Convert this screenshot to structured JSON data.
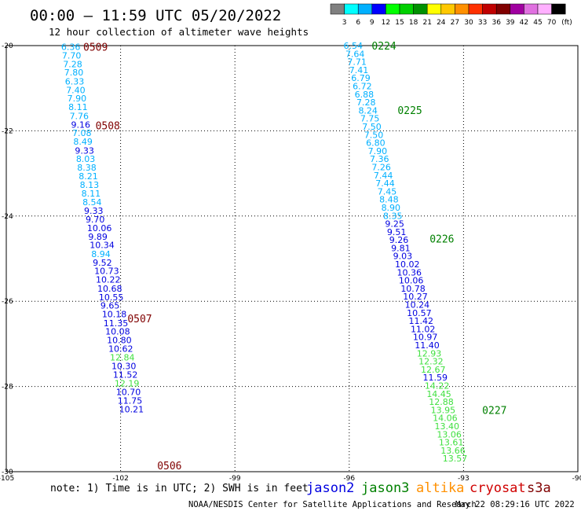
{
  "header": {
    "title": "00:00 – 11:59 UTC 05/20/2022",
    "subtitle": "12 hour collection of altimeter wave heights"
  },
  "color_scale": {
    "unit_label": "(ft)",
    "thresholds": [
      "3",
      "6",
      "9",
      "12",
      "15",
      "18",
      "21",
      "24",
      "27",
      "30",
      "33",
      "36",
      "39",
      "42",
      "45",
      "70"
    ],
    "colors": [
      "#808080",
      "#00ffff",
      "#00b0ff",
      "#0000ff",
      "#00ff00",
      "#00d000",
      "#009000",
      "#ffff00",
      "#ffc800",
      "#ff9000",
      "#ff3000",
      "#c00000",
      "#800000",
      "#a000a0",
      "#e070e0",
      "#ffb0ff",
      "#000000"
    ]
  },
  "footer": {
    "note": "note: 1) Time is in UTC; 2) SWH is in feet",
    "credit": "NOAA/NESDIS Center for Satellite Applications and Research",
    "timestamp": "May 22 08:29:16 UTC 2022",
    "legend": [
      {
        "name": "jason2",
        "color": "#0000e0"
      },
      {
        "name": "jason3",
        "color": "#008000"
      },
      {
        "name": "altika",
        "color": "#ff9000"
      },
      {
        "name": "cryosat",
        "color": "#d00000"
      },
      {
        "name": "s3a",
        "color": "#800000"
      }
    ]
  },
  "chart_data": {
    "type": "scatter",
    "xlim": [
      -105,
      -90
    ],
    "ylim": [
      -30,
      -20
    ],
    "x_ticks": [
      "-105",
      "-102",
      "-99",
      "-96",
      "-93",
      "-90"
    ],
    "y_ticks": [
      "-20",
      "-22",
      "-24",
      "-26",
      "-28",
      "-30"
    ],
    "grid": true,
    "series": [
      {
        "name": "s3a",
        "color": "#800000",
        "time_labels": [
          {
            "text": "0509",
            "x": -102.98,
            "y": -20.03
          },
          {
            "text": "0508",
            "x": -102.66,
            "y": -21.87
          },
          {
            "text": "0507",
            "x": -101.82,
            "y": -26.4
          },
          {
            "text": "0506",
            "x": -101.04,
            "y": -29.85
          }
        ],
        "points": [
          {
            "x": -103.56,
            "y": -20.03,
            "v": "6.36",
            "c": "#00b0ff"
          },
          {
            "x": -103.54,
            "y": -20.23,
            "v": "7.70",
            "c": "#00b0ff"
          },
          {
            "x": -103.51,
            "y": -20.43,
            "v": "7.28",
            "c": "#00b0ff"
          },
          {
            "x": -103.48,
            "y": -20.63,
            "v": "7.80",
            "c": "#00b0ff"
          },
          {
            "x": -103.46,
            "y": -20.84,
            "v": "6.33",
            "c": "#00b0ff"
          },
          {
            "x": -103.43,
            "y": -21.04,
            "v": "7.40",
            "c": "#00b0ff"
          },
          {
            "x": -103.4,
            "y": -21.24,
            "v": "7.90",
            "c": "#00b0ff"
          },
          {
            "x": -103.37,
            "y": -21.44,
            "v": "8.11",
            "c": "#00b0ff"
          },
          {
            "x": -103.34,
            "y": -21.65,
            "v": "7.76",
            "c": "#00b0ff"
          },
          {
            "x": -103.3,
            "y": -21.85,
            "v": "9.16",
            "c": "#0000e0"
          },
          {
            "x": -103.27,
            "y": -22.05,
            "v": "7.08",
            "c": "#00b0ff"
          },
          {
            "x": -103.24,
            "y": -22.25,
            "v": "8.49",
            "c": "#00b0ff"
          },
          {
            "x": -103.2,
            "y": -22.46,
            "v": "9.33",
            "c": "#0000e0"
          },
          {
            "x": -103.17,
            "y": -22.66,
            "v": "8.03",
            "c": "#00b0ff"
          },
          {
            "x": -103.14,
            "y": -22.86,
            "v": "8.38",
            "c": "#00b0ff"
          },
          {
            "x": -103.1,
            "y": -23.06,
            "v": "8.21",
            "c": "#00b0ff"
          },
          {
            "x": -103.07,
            "y": -23.27,
            "v": "8.13",
            "c": "#00b0ff"
          },
          {
            "x": -103.03,
            "y": -23.47,
            "v": "8.11",
            "c": "#00b0ff"
          },
          {
            "x": -103.0,
            "y": -23.67,
            "v": "8.54",
            "c": "#00b0ff"
          },
          {
            "x": -102.96,
            "y": -23.87,
            "v": "9.33",
            "c": "#0000e0"
          },
          {
            "x": -102.92,
            "y": -24.08,
            "v": "9.70",
            "c": "#0000e0"
          },
          {
            "x": -102.88,
            "y": -24.28,
            "v": "10.06",
            "c": "#0000e0"
          },
          {
            "x": -102.85,
            "y": -24.48,
            "v": "9.89",
            "c": "#0000e0"
          },
          {
            "x": -102.81,
            "y": -24.68,
            "v": "10.34",
            "c": "#0000e0"
          },
          {
            "x": -102.77,
            "y": -24.89,
            "v": "8.94",
            "c": "#00b0ff"
          },
          {
            "x": -102.73,
            "y": -25.09,
            "v": "9.52",
            "c": "#0000e0"
          },
          {
            "x": -102.69,
            "y": -25.29,
            "v": "10.73",
            "c": "#0000e0"
          },
          {
            "x": -102.65,
            "y": -25.49,
            "v": "10.22",
            "c": "#0000e0"
          },
          {
            "x": -102.61,
            "y": -25.7,
            "v": "10.68",
            "c": "#0000e0"
          },
          {
            "x": -102.57,
            "y": -25.9,
            "v": "10.55",
            "c": "#0000e0"
          },
          {
            "x": -102.53,
            "y": -26.1,
            "v": "9.65",
            "c": "#0000e0"
          },
          {
            "x": -102.49,
            "y": -26.3,
            "v": "10.18",
            "c": "#0000e0"
          },
          {
            "x": -102.45,
            "y": -26.51,
            "v": "11.35",
            "c": "#0000e0"
          },
          {
            "x": -102.4,
            "y": -26.71,
            "v": "10.08",
            "c": "#0000e0"
          },
          {
            "x": -102.36,
            "y": -26.91,
            "v": "10.80",
            "c": "#0000e0"
          },
          {
            "x": -102.32,
            "y": -27.11,
            "v": "10.62",
            "c": "#0000e0"
          },
          {
            "x": -102.28,
            "y": -27.32,
            "v": "12.84",
            "c": "#40e040"
          },
          {
            "x": -102.24,
            "y": -27.52,
            "v": "10.30",
            "c": "#0000e0"
          },
          {
            "x": -102.2,
            "y": -27.72,
            "v": "11.52",
            "c": "#0000e0"
          },
          {
            "x": -102.16,
            "y": -27.92,
            "v": "12.19",
            "c": "#40e040"
          },
          {
            "x": -102.12,
            "y": -28.13,
            "v": "10.70",
            "c": "#0000e0"
          },
          {
            "x": -102.08,
            "y": -28.33,
            "v": "11.75",
            "c": "#0000e0"
          },
          {
            "x": -102.04,
            "y": -28.53,
            "v": "10.21",
            "c": "#0000e0"
          }
        ]
      },
      {
        "name": "jason3",
        "color": "#008000",
        "time_labels": [
          {
            "text": "0224",
            "x": -95.41,
            "y": -20.0
          },
          {
            "text": "0225",
            "x": -94.73,
            "y": -21.51
          },
          {
            "text": "0226",
            "x": -93.89,
            "y": -24.53
          },
          {
            "text": "0227",
            "x": -92.51,
            "y": -28.55
          }
        ],
        "points": [
          {
            "x": -96.15,
            "y": -20.0,
            "v": "6.54",
            "c": "#00b0ff"
          },
          {
            "x": -96.1,
            "y": -20.19,
            "v": "7.64",
            "c": "#00b0ff"
          },
          {
            "x": -96.05,
            "y": -20.38,
            "v": "7.71",
            "c": "#00b0ff"
          },
          {
            "x": -96.0,
            "y": -20.57,
            "v": "7.41",
            "c": "#00b0ff"
          },
          {
            "x": -95.95,
            "y": -20.76,
            "v": "6.79",
            "c": "#00b0ff"
          },
          {
            "x": -95.91,
            "y": -20.95,
            "v": "6.72",
            "c": "#00b0ff"
          },
          {
            "x": -95.86,
            "y": -21.14,
            "v": "6.88",
            "c": "#00b0ff"
          },
          {
            "x": -95.81,
            "y": -21.33,
            "v": "7.28",
            "c": "#00b0ff"
          },
          {
            "x": -95.76,
            "y": -21.52,
            "v": "8.24",
            "c": "#00b0ff"
          },
          {
            "x": -95.71,
            "y": -21.71,
            "v": "7.75",
            "c": "#00b0ff"
          },
          {
            "x": -95.66,
            "y": -21.9,
            "v": "7.50",
            "c": "#00b0ff"
          },
          {
            "x": -95.61,
            "y": -22.09,
            "v": "7.50",
            "c": "#00b0ff"
          },
          {
            "x": -95.56,
            "y": -22.28,
            "v": "6.80",
            "c": "#00b0ff"
          },
          {
            "x": -95.51,
            "y": -22.47,
            "v": "7.90",
            "c": "#00b0ff"
          },
          {
            "x": -95.46,
            "y": -22.66,
            "v": "7.36",
            "c": "#00b0ff"
          },
          {
            "x": -95.41,
            "y": -22.85,
            "v": "7.26",
            "c": "#00b0ff"
          },
          {
            "x": -95.36,
            "y": -23.04,
            "v": "7.44",
            "c": "#00b0ff"
          },
          {
            "x": -95.31,
            "y": -23.23,
            "v": "7.44",
            "c": "#00b0ff"
          },
          {
            "x": -95.26,
            "y": -23.42,
            "v": "7.45",
            "c": "#00b0ff"
          },
          {
            "x": -95.21,
            "y": -23.61,
            "v": "8.48",
            "c": "#00b0ff"
          },
          {
            "x": -95.16,
            "y": -23.8,
            "v": "8.90",
            "c": "#00b0ff"
          },
          {
            "x": -95.11,
            "y": -23.99,
            "v": "8.35",
            "c": "#00b0ff"
          },
          {
            "x": -95.06,
            "y": -24.18,
            "v": "9.25",
            "c": "#0000e0"
          },
          {
            "x": -95.01,
            "y": -24.37,
            "v": "9.51",
            "c": "#0000e0"
          },
          {
            "x": -94.95,
            "y": -24.56,
            "v": "9.26",
            "c": "#0000e0"
          },
          {
            "x": -94.9,
            "y": -24.75,
            "v": "9.81",
            "c": "#0000e0"
          },
          {
            "x": -94.85,
            "y": -24.94,
            "v": "9.03",
            "c": "#0000e0"
          },
          {
            "x": -94.8,
            "y": -25.13,
            "v": "10.02",
            "c": "#0000e0"
          },
          {
            "x": -94.75,
            "y": -25.32,
            "v": "10.36",
            "c": "#0000e0"
          },
          {
            "x": -94.7,
            "y": -25.51,
            "v": "10.06",
            "c": "#0000e0"
          },
          {
            "x": -94.65,
            "y": -25.7,
            "v": "10.78",
            "c": "#0000e0"
          },
          {
            "x": -94.59,
            "y": -25.89,
            "v": "10.27",
            "c": "#0000e0"
          },
          {
            "x": -94.54,
            "y": -26.08,
            "v": "10.24",
            "c": "#0000e0"
          },
          {
            "x": -94.49,
            "y": -26.27,
            "v": "10.57",
            "c": "#0000e0"
          },
          {
            "x": -94.44,
            "y": -26.46,
            "v": "11.42",
            "c": "#0000e0"
          },
          {
            "x": -94.39,
            "y": -26.65,
            "v": "11.02",
            "c": "#0000e0"
          },
          {
            "x": -94.33,
            "y": -26.84,
            "v": "10.97",
            "c": "#0000e0"
          },
          {
            "x": -94.28,
            "y": -27.03,
            "v": "11.40",
            "c": "#0000e0"
          },
          {
            "x": -94.23,
            "y": -27.22,
            "v": "12.93",
            "c": "#40e040"
          },
          {
            "x": -94.18,
            "y": -27.41,
            "v": "12.32",
            "c": "#40e040"
          },
          {
            "x": -94.12,
            "y": -27.6,
            "v": "12.67",
            "c": "#40e040"
          },
          {
            "x": -94.07,
            "y": -27.79,
            "v": "11.59",
            "c": "#0000e0"
          },
          {
            "x": -94.02,
            "y": -27.98,
            "v": "14.22",
            "c": "#40e040"
          },
          {
            "x": -93.97,
            "y": -28.17,
            "v": "14.45",
            "c": "#40e040"
          },
          {
            "x": -93.91,
            "y": -28.36,
            "v": "12.88",
            "c": "#40e040"
          },
          {
            "x": -93.86,
            "y": -28.55,
            "v": "13.95",
            "c": "#40e040"
          },
          {
            "x": -93.81,
            "y": -28.74,
            "v": "14.06",
            "c": "#40e040"
          },
          {
            "x": -93.76,
            "y": -28.93,
            "v": "13.40",
            "c": "#40e040"
          },
          {
            "x": -93.7,
            "y": -29.12,
            "v": "13.06",
            "c": "#40e040"
          },
          {
            "x": -93.65,
            "y": -29.31,
            "v": "13.61",
            "c": "#40e040"
          },
          {
            "x": -93.6,
            "y": -29.5,
            "v": "13.66",
            "c": "#40e040"
          },
          {
            "x": -93.55,
            "y": -29.69,
            "v": "13.57",
            "c": "#40e040"
          }
        ]
      }
    ]
  }
}
